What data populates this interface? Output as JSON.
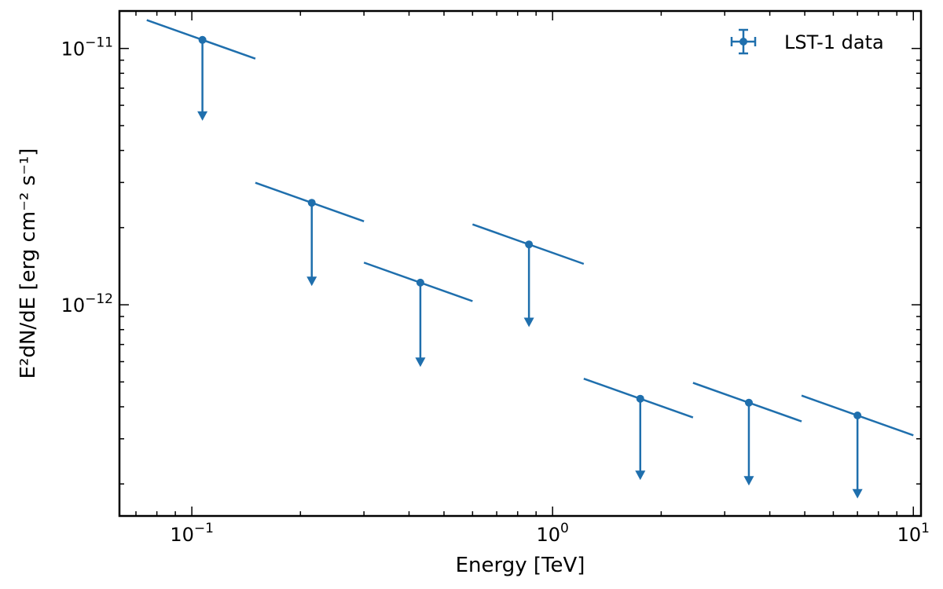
{
  "chart_data": {
    "type": "scatter",
    "title": "",
    "xlabel": "Energy [TeV]",
    "ylabel": "E²dN/dE [erg cm⁻² s⁻¹]",
    "xscale": "log",
    "yscale": "log",
    "xlim": [
      0.063,
      10.5
    ],
    "ylim": [
      1.5e-13,
      1.4e-11
    ],
    "x_ticks": [
      {
        "value": 0.1,
        "base": "10",
        "exp": "−1"
      },
      {
        "value": 1,
        "base": "10",
        "exp": "0"
      },
      {
        "value": 10,
        "base": "10",
        "exp": "1"
      }
    ],
    "y_ticks": [
      {
        "value": 1e-12,
        "base": "10",
        "exp": "−12"
      },
      {
        "value": 1e-11,
        "base": "10",
        "exp": "−11"
      }
    ],
    "grid": false,
    "legend": {
      "placement": "top-right",
      "entries": [
        "LST-1 data"
      ]
    },
    "colors": {
      "series": "#1f6fad",
      "axes": "#000000"
    },
    "series": [
      {
        "name": "LST-1 data",
        "marker": "circle",
        "upper_limits": true,
        "spectral_index": 2.5,
        "points": [
          {
            "x": 0.107,
            "y": 1.08e-11,
            "x_low": 0.075,
            "x_high": 0.15,
            "ul_arrow_to": 5.3e-12
          },
          {
            "x": 0.215,
            "y": 2.5e-12,
            "x_low": 0.15,
            "x_high": 0.3,
            "ul_arrow_to": 1.2e-12
          },
          {
            "x": 0.43,
            "y": 1.22e-12,
            "x_low": 0.3,
            "x_high": 0.6,
            "ul_arrow_to": 5.8e-13
          },
          {
            "x": 0.86,
            "y": 1.72e-12,
            "x_low": 0.6,
            "x_high": 1.22,
            "ul_arrow_to": 8.3e-13
          },
          {
            "x": 1.75,
            "y": 4.3e-13,
            "x_low": 1.22,
            "x_high": 2.45,
            "ul_arrow_to": 2.1e-13
          },
          {
            "x": 3.5,
            "y": 4.15e-13,
            "x_low": 2.45,
            "x_high": 4.9,
            "ul_arrow_to": 2e-13
          },
          {
            "x": 7.0,
            "y": 3.7e-13,
            "x_low": 4.9,
            "x_high": 10.0,
            "ul_arrow_to": 1.78e-13
          }
        ]
      }
    ]
  }
}
